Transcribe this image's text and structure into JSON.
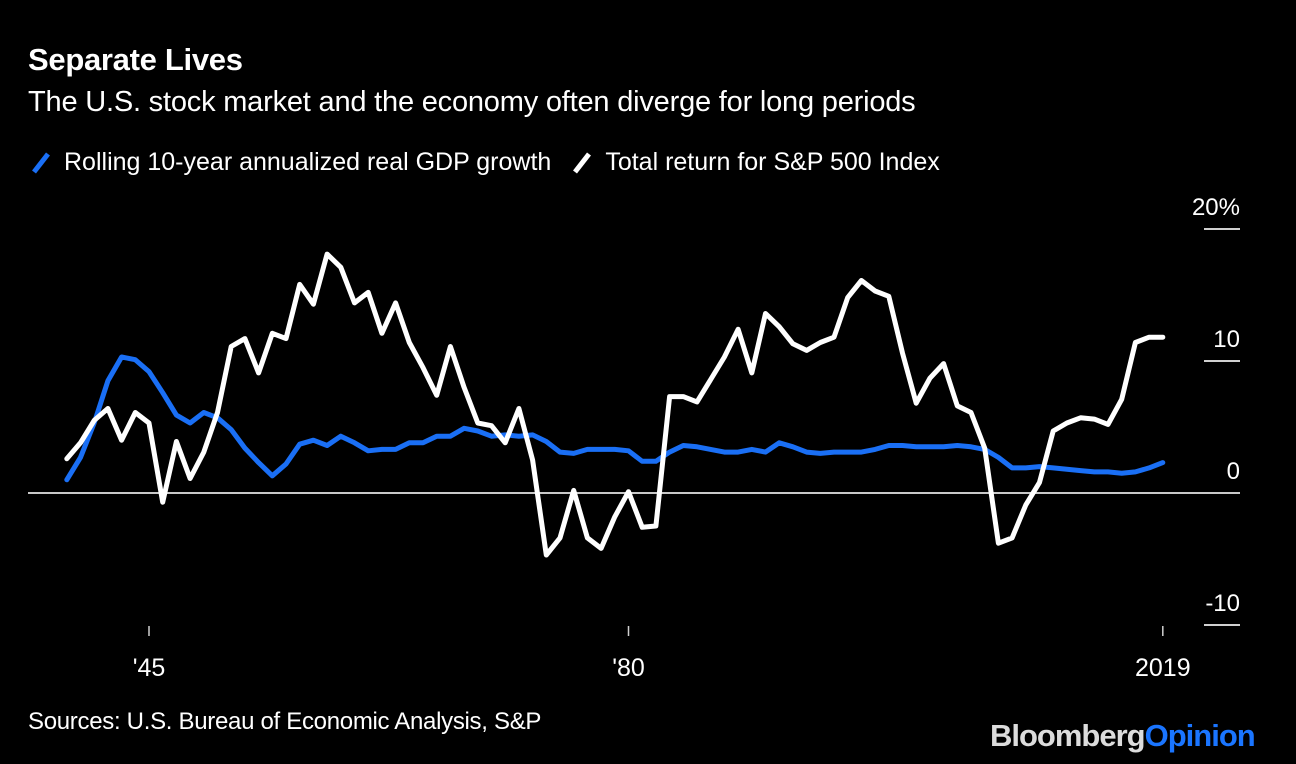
{
  "header": {
    "title": "Separate Lives",
    "subtitle": "The U.S. stock market and the economy often diverge for long periods"
  },
  "footer": {
    "source": "Sources: U.S. Bureau of Economic Analysis, S&P",
    "brand_primary": "Bloomberg",
    "brand_secondary": "Opinion"
  },
  "colors": {
    "background": "#000000",
    "gdp": "#1a6ff5",
    "sp500": "#ffffff",
    "brand_accent": "#1a75ff"
  },
  "chart_data": {
    "type": "line",
    "title": "Separate Lives",
    "subtitle": "The U.S. stock market and the economy often diverge for long periods",
    "xlabel": "",
    "ylabel": "",
    "xlim": [
      1939,
      2019
    ],
    "ylim": [
      -10,
      20
    ],
    "legend_position": "top-left",
    "grid": false,
    "y_ticks": [
      {
        "value": 20,
        "label": "20%"
      },
      {
        "value": 10,
        "label": "10"
      },
      {
        "value": 0,
        "label": "0"
      },
      {
        "value": -10,
        "label": "-10"
      }
    ],
    "x_ticks": [
      {
        "value": 1945,
        "label": "'45"
      },
      {
        "value": 1980,
        "label": "'80"
      },
      {
        "value": 2019,
        "label": "2019"
      }
    ],
    "series": [
      {
        "name": "Rolling 10-year annualized real GDP growth",
        "color": "#1a6ff5",
        "x": [
          1939,
          1940,
          1941,
          1942,
          1943,
          1944,
          1945,
          1946,
          1947,
          1948,
          1949,
          1950,
          1951,
          1952,
          1953,
          1954,
          1955,
          1956,
          1957,
          1958,
          1959,
          1960,
          1961,
          1962,
          1963,
          1964,
          1965,
          1966,
          1967,
          1968,
          1969,
          1970,
          1971,
          1972,
          1973,
          1974,
          1975,
          1976,
          1977,
          1978,
          1979,
          1980,
          1981,
          1982,
          1983,
          1984,
          1985,
          1986,
          1987,
          1988,
          1989,
          1990,
          1991,
          1992,
          1993,
          1994,
          1995,
          1996,
          1997,
          1998,
          1999,
          2000,
          2001,
          2002,
          2003,
          2004,
          2005,
          2006,
          2007,
          2008,
          2009,
          2010,
          2011,
          2012,
          2013,
          2014,
          2015,
          2016,
          2017,
          2018,
          2019
        ],
        "values": [
          1.0,
          2.7,
          5.3,
          8.5,
          10.3,
          10.1,
          9.2,
          7.6,
          5.9,
          5.3,
          6.1,
          5.7,
          4.8,
          3.4,
          2.3,
          1.3,
          2.2,
          3.7,
          4.0,
          3.6,
          4.3,
          3.8,
          3.2,
          3.3,
          3.3,
          3.8,
          3.8,
          4.3,
          4.3,
          4.9,
          4.7,
          4.3,
          4.4,
          4.3,
          4.4,
          3.9,
          3.1,
          3.0,
          3.3,
          3.3,
          3.3,
          3.2,
          2.4,
          2.4,
          3.1,
          3.6,
          3.5,
          3.3,
          3.1,
          3.1,
          3.3,
          3.1,
          3.8,
          3.5,
          3.1,
          3.0,
          3.1,
          3.1,
          3.1,
          3.3,
          3.6,
          3.6,
          3.5,
          3.5,
          3.5,
          3.6,
          3.5,
          3.3,
          2.7,
          1.9,
          1.9,
          2.0,
          1.9,
          1.8,
          1.7,
          1.6,
          1.6,
          1.5,
          1.6,
          1.9,
          2.3
        ]
      },
      {
        "name": "Total return for S&P 500 Index",
        "color": "#ffffff",
        "x": [
          1939,
          1940,
          1941,
          1942,
          1943,
          1944,
          1945,
          1946,
          1947,
          1948,
          1949,
          1950,
          1951,
          1952,
          1953,
          1954,
          1955,
          1956,
          1957,
          1958,
          1959,
          1960,
          1961,
          1962,
          1963,
          1964,
          1965,
          1966,
          1967,
          1968,
          1969,
          1970,
          1971,
          1972,
          1973,
          1974,
          1975,
          1976,
          1977,
          1978,
          1979,
          1980,
          1981,
          1982,
          1983,
          1984,
          1985,
          1986,
          1987,
          1988,
          1989,
          1990,
          1991,
          1992,
          1993,
          1994,
          1995,
          1996,
          1997,
          1998,
          1999,
          2000,
          2001,
          2002,
          2003,
          2004,
          2005,
          2006,
          2007,
          2008,
          2009,
          2010,
          2011,
          2012,
          2013,
          2014,
          2015,
          2016,
          2017,
          2018,
          2019
        ],
        "values": [
          2.6,
          3.8,
          5.5,
          6.4,
          4.0,
          6.1,
          5.3,
          -0.7,
          3.9,
          1.1,
          3.1,
          6.1,
          11.1,
          11.7,
          9.1,
          12.1,
          11.7,
          15.8,
          14.3,
          18.1,
          17.1,
          14.4,
          15.2,
          12.1,
          14.4,
          11.4,
          9.5,
          7.4,
          11.1,
          8.0,
          5.3,
          5.1,
          3.8,
          6.4,
          2.5,
          -4.7,
          -3.4,
          0.2,
          -3.4,
          -4.2,
          -1.8,
          0.1,
          -2.6,
          -2.5,
          7.3,
          7.3,
          6.9,
          8.6,
          10.3,
          12.4,
          9.1,
          13.6,
          12.6,
          11.3,
          10.8,
          11.4,
          11.8,
          14.8,
          16.1,
          15.3,
          14.9,
          10.6,
          6.8,
          8.7,
          9.8,
          6.6,
          6.1,
          3.4,
          -3.8,
          -3.4,
          -0.9,
          0.8,
          4.7,
          5.3,
          5.7,
          5.6,
          5.2,
          7.1,
          11.4,
          11.8,
          11.8
        ]
      }
    ]
  },
  "legend": {
    "items": [
      {
        "label": "Rolling 10-year annualized real GDP growth",
        "icon": "blue-slash-swatch"
      },
      {
        "label": "Total return for S&P 500 Index",
        "icon": "white-slash-swatch"
      }
    ]
  }
}
